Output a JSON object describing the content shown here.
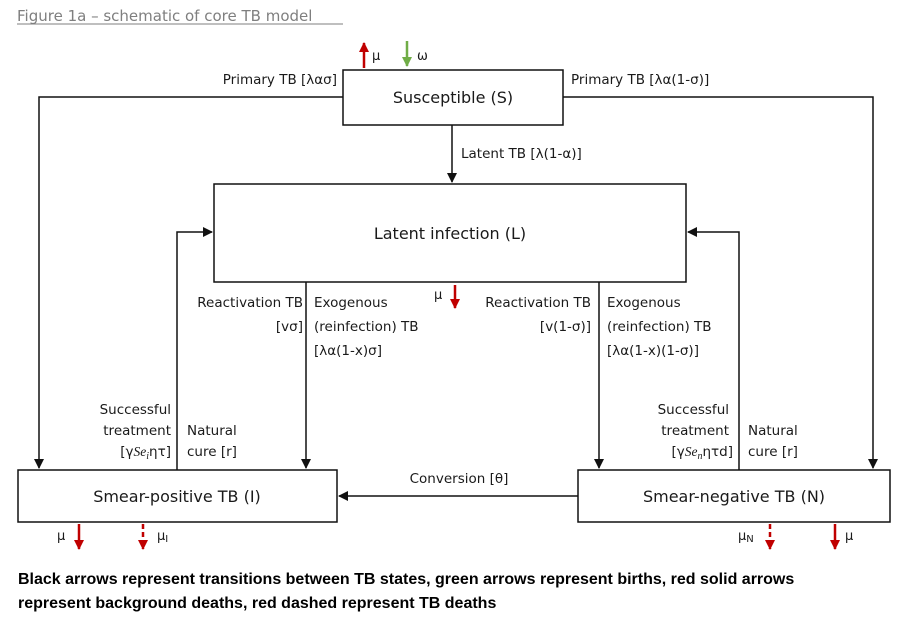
{
  "figure_title": "Figure 1a – schematic of core TB model",
  "colors": {
    "transition": "#111111",
    "birth": "#70ad47",
    "death": "#c00000"
  },
  "compartments": {
    "susceptible": "Susceptible (S)",
    "latent": "Latent infection (L)",
    "smear_positive": "Smear-positive TB (I)",
    "smear_negative": "Smear-negative TB (N)"
  },
  "flows": {
    "birth_label": "ω",
    "s_death_label": "μ",
    "l_death_label": "μ",
    "primary_left": "Primary TB [λασ]",
    "primary_right": "Primary TB [λα(1-σ)]",
    "latent_tb": "Latent TB [λ(1-α)]",
    "react_left_1": "Reactivation TB",
    "react_left_2": "[vσ]",
    "exo_left_1": "Exogenous",
    "exo_left_2": "(reinfection) TB",
    "exo_left_3": "[λα(1-x)σ]",
    "react_right_1": "Reactivation TB",
    "react_right_2": "[v(1-σ)]",
    "exo_right_1": "Exogenous",
    "exo_right_2": "(reinfection) TB",
    "exo_right_3": "[λα(1-x)(1-σ)]",
    "succ_left_1": "Successful",
    "succ_left_2": "treatment",
    "succ_left_3_pre": "[γ",
    "succ_left_3_ital": "Se",
    "succ_left_3_sub": "i",
    "succ_left_3_post": "ητ]",
    "nat_left_1": "Natural",
    "nat_left_2": "cure [r]",
    "succ_right_1": "Successful",
    "succ_right_2": "treatment",
    "succ_right_3_pre": "[γ",
    "succ_right_3_ital": "Se",
    "succ_right_3_sub": "n",
    "succ_right_3_post": "ητd]",
    "nat_right_1": "Natural",
    "nat_right_2": "cure [r]",
    "conversion": "Conversion [θ]",
    "i_bg_death": "μ",
    "i_tb_death": "μ",
    "i_tb_death_sub": "I",
    "n_tb_death": "μ",
    "n_tb_death_sub": "N",
    "n_bg_death": "μ"
  },
  "caption": {
    "line1": "Black arrows represent transitions between TB states, green arrows represent births, red solid arrows",
    "line2": "represent background deaths, red dashed represent TB deaths"
  }
}
